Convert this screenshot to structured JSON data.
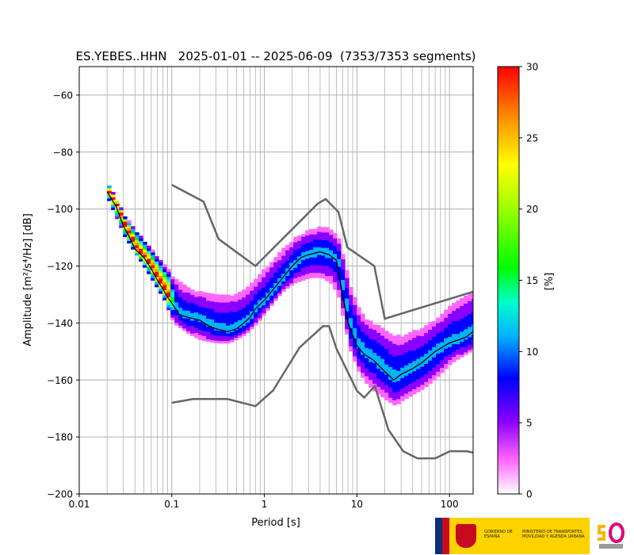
{
  "chart_data": {
    "type": "heatmap",
    "title": "ES.YEBES..HHN   2025-01-01 -- 2025-06-09  (7353/7353 segments)",
    "xlabel": "Period [s]",
    "ylabel": "Amplitude [m²/s⁴/Hz] [dB]",
    "xscale": "log",
    "xlim": [
      0.01,
      180
    ],
    "ylim": [
      -200,
      -50
    ],
    "xticks": [
      0.01,
      0.1,
      1,
      10,
      100
    ],
    "xtick_labels": [
      "0.01",
      "0.1",
      "1",
      "10",
      "100"
    ],
    "yticks": [
      -200,
      -180,
      -160,
      -140,
      -120,
      -100,
      -80,
      -60
    ],
    "ytick_labels": [
      "−200",
      "−180",
      "−160",
      "−140",
      "−120",
      "−100",
      "−80",
      "−60"
    ],
    "grid": true,
    "colorbar": {
      "label": "[%]",
      "range": [
        0,
        30
      ],
      "ticks": [
        0,
        5,
        10,
        15,
        20,
        25,
        30
      ],
      "tick_labels": [
        "0",
        "5",
        "10",
        "15",
        "20",
        "25",
        "30"
      ],
      "colormap": "pqlx"
    },
    "mode_curve": [
      [
        0.02,
        -94
      ],
      [
        0.025,
        -99
      ],
      [
        0.03,
        -106
      ],
      [
        0.035,
        -110
      ],
      [
        0.04,
        -114
      ],
      [
        0.05,
        -117
      ],
      [
        0.06,
        -121
      ],
      [
        0.07,
        -125
      ],
      [
        0.08,
        -128
      ],
      [
        0.09,
        -131
      ],
      [
        0.1,
        -133
      ],
      [
        0.12,
        -137
      ],
      [
        0.15,
        -138
      ],
      [
        0.2,
        -139
      ],
      [
        0.25,
        -141
      ],
      [
        0.3,
        -142
      ],
      [
        0.4,
        -143
      ],
      [
        0.5,
        -142
      ],
      [
        0.6,
        -140
      ],
      [
        0.7,
        -138
      ],
      [
        0.8,
        -135
      ],
      [
        1,
        -132
      ],
      [
        1.5,
        -125
      ],
      [
        2,
        -120
      ],
      [
        2.5,
        -117
      ],
      [
        3,
        -116
      ],
      [
        4,
        -115
      ],
      [
        5,
        -116
      ],
      [
        6,
        -118
      ],
      [
        7,
        -130
      ],
      [
        8,
        -140
      ],
      [
        10,
        -148
      ],
      [
        12,
        -151
      ],
      [
        15,
        -153
      ],
      [
        20,
        -157
      ],
      [
        25,
        -160
      ],
      [
        30,
        -158
      ],
      [
        40,
        -156
      ],
      [
        50,
        -154
      ],
      [
        70,
        -150
      ],
      [
        100,
        -147
      ],
      [
        150,
        -145
      ],
      [
        180,
        -143
      ]
    ],
    "noise_models": {
      "high": [
        [
          0.1,
          -91.5
        ],
        [
          0.22,
          -97.4
        ],
        [
          0.32,
          -110.5
        ],
        [
          0.8,
          -120
        ],
        [
          3.8,
          -98
        ],
        [
          4.6,
          -96.5
        ],
        [
          6.3,
          -101
        ],
        [
          7.9,
          -113.5
        ],
        [
          15.4,
          -120
        ],
        [
          20,
          -138.5
        ],
        [
          180,
          -129
        ]
      ],
      "low": [
        [
          0.1,
          -168
        ],
        [
          0.17,
          -166.7
        ],
        [
          0.4,
          -166.7
        ],
        [
          0.8,
          -169.2
        ],
        [
          1.24,
          -163.7
        ],
        [
          2.4,
          -148.6
        ],
        [
          4.3,
          -141.1
        ],
        [
          5,
          -141.1
        ],
        [
          6,
          -149
        ],
        [
          10,
          -163.8
        ],
        [
          12,
          -166.2
        ],
        [
          15.6,
          -162.1
        ],
        [
          21.9,
          -177.5
        ],
        [
          31.6,
          -185
        ],
        [
          45,
          -187.5
        ],
        [
          70,
          -187.5
        ],
        [
          101,
          -185
        ],
        [
          154,
          -185
        ],
        [
          180,
          -185.5
        ]
      ]
    },
    "spread": [
      [
        0.02,
        -92,
        -98
      ],
      [
        0.03,
        -103,
        -111
      ],
      [
        0.05,
        -112,
        -122
      ],
      [
        0.08,
        -120,
        -133
      ],
      [
        0.1,
        -124,
        -141
      ],
      [
        0.15,
        -128,
        -145
      ],
      [
        0.2,
        -129,
        -147
      ],
      [
        0.3,
        -130,
        -148
      ],
      [
        0.4,
        -130,
        -148
      ],
      [
        0.6,
        -128,
        -145
      ],
      [
        0.8,
        -124,
        -141
      ],
      [
        1,
        -120,
        -137
      ],
      [
        1.5,
        -114,
        -130
      ],
      [
        2,
        -110,
        -127
      ],
      [
        3,
        -107,
        -125
      ],
      [
        4,
        -106,
        -125
      ],
      [
        5,
        -107,
        -127
      ],
      [
        6,
        -110,
        -131
      ],
      [
        7,
        -117,
        -141
      ],
      [
        8,
        -126,
        -150
      ],
      [
        10,
        -134,
        -158
      ],
      [
        12,
        -138,
        -162
      ],
      [
        15,
        -140,
        -165
      ],
      [
        20,
        -142,
        -168
      ],
      [
        25,
        -144,
        -170
      ],
      [
        30,
        -144,
        -168
      ],
      [
        50,
        -141,
        -164
      ],
      [
        70,
        -138,
        -160
      ],
      [
        100,
        -133,
        -155
      ],
      [
        180,
        -128,
        -150
      ]
    ],
    "colors": {
      "mode_curve": "#000000",
      "noise_model": "#666666",
      "grid": "#b0b0b0"
    }
  },
  "logos": {
    "gov_line1": "GOBIERNO DE ESPAÑA",
    "gov_line2": "MINISTERIO DE TRANSPORTES, MOVILIDAD Y AGENDA URBANA"
  }
}
